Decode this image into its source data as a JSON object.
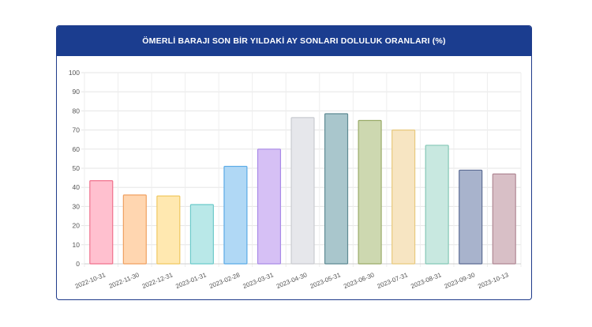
{
  "card": {
    "title": "ÖMERLİ BARAJI SON BİR YILDAKİ AY SONLARI DOLULUK ORANLARI (%)"
  },
  "chart_data": {
    "type": "bar",
    "title": "ÖMERLİ BARAJI SON BİR YILDAKİ AY SONLARI DOLULUK ORANLARI (%)",
    "xlabel": "",
    "ylabel": "",
    "ylim": [
      0,
      100
    ],
    "yticks": [
      0,
      10,
      20,
      30,
      40,
      50,
      60,
      70,
      80,
      90,
      100
    ],
    "grid": true,
    "legend": "none",
    "categories": [
      "2022-10-31",
      "2022-11-30",
      "2022-12-31",
      "2023-01-31",
      "2023-02-28",
      "2023-03-31",
      "2023-04-30",
      "2023-05-31",
      "2023-06-30",
      "2023-07-31",
      "2023-08-31",
      "2023-09-30",
      "2023-10-13"
    ],
    "values": [
      43.5,
      36,
      35.5,
      31,
      51,
      60,
      76.5,
      78.5,
      75,
      70,
      62,
      49,
      47
    ],
    "bar_fill": [
      "#ffc0cf",
      "#ffd6b0",
      "#ffe8b0",
      "#b9e8e8",
      "#b0d8f5",
      "#d6c0f5",
      "#e6e7eb",
      "#a9c6cc",
      "#cdd8b0",
      "#f7e5c2",
      "#c8e8e0",
      "#a8b3cc",
      "#d8bfc6"
    ],
    "bar_stroke": [
      "#f0708c",
      "#f0a060",
      "#f0c860",
      "#6ccaca",
      "#5aaae6",
      "#a98be8",
      "#c9cbd1",
      "#5e8a93",
      "#9aab68",
      "#e8c97e",
      "#84c8b6",
      "#5c6c94",
      "#b08894"
    ]
  }
}
